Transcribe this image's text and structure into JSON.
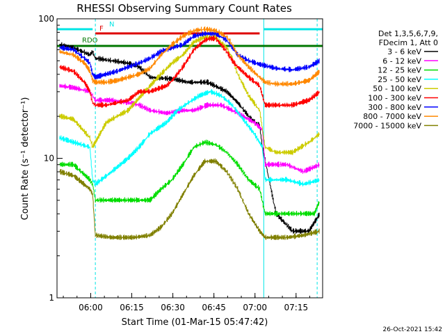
{
  "chart_data": {
    "type": "line",
    "title": "RHESSI Observing Summary Count Rates",
    "xlabel": "Start Time (01-Mar-15 05:47:42)",
    "ylabel": "Count Rate (s⁻¹ detector⁻¹)",
    "xaxis_unit": "minutes after 05:47:42",
    "xlim": [
      0,
      97
    ],
    "ylim": [
      1,
      100
    ],
    "yscale": "log",
    "x_ticks": [
      {
        "v": 12.3,
        "label": "06:00"
      },
      {
        "v": 27.3,
        "label": "06:15"
      },
      {
        "v": 42.3,
        "label": "06:30"
      },
      {
        "v": 57.3,
        "label": "06:45"
      },
      {
        "v": 72.3,
        "label": "07:00"
      },
      {
        "v": 87.3,
        "label": "07:15"
      }
    ],
    "y_ticks": [
      {
        "v": 1,
        "label": "1"
      },
      {
        "v": 10,
        "label": "10"
      },
      {
        "v": 100,
        "label": "100"
      }
    ],
    "legend": {
      "placement": "right",
      "header": [
        "Det 1,3,5,6,7,9,",
        "FDecim 1, Att 0"
      ]
    },
    "flags": [
      {
        "name": "N",
        "color": "#00e5e5",
        "segments": [
          [
            0,
            13
          ],
          [
            75.5,
            97
          ]
        ]
      },
      {
        "name": "F",
        "color": "#dd0000",
        "segments": [
          [
            14,
            74
          ]
        ]
      },
      {
        "name": "RDO",
        "color": "#007700",
        "segments": [
          [
            0,
            97
          ]
        ]
      }
    ],
    "series": [
      {
        "name": "3 - 6 keV",
        "color": "#000000",
        "points": [
          [
            1,
            65
          ],
          [
            6,
            62
          ],
          [
            12,
            55
          ],
          [
            13,
            58
          ],
          [
            14,
            52
          ],
          [
            20,
            50
          ],
          [
            26,
            48
          ],
          [
            30,
            45
          ],
          [
            34,
            38
          ],
          [
            42,
            37
          ],
          [
            48,
            35
          ],
          [
            55,
            35
          ],
          [
            62,
            30
          ],
          [
            66,
            25
          ],
          [
            70,
            20
          ],
          [
            74,
            17
          ],
          [
            75,
            12
          ],
          [
            80,
            4
          ],
          [
            86,
            3
          ],
          [
            92,
            3
          ],
          [
            96,
            4
          ]
        ]
      },
      {
        "name": "6 - 12 keV",
        "color": "#ff00ff",
        "points": [
          [
            1,
            33
          ],
          [
            6,
            32
          ],
          [
            12,
            30
          ],
          [
            13,
            28
          ],
          [
            14,
            26
          ],
          [
            20,
            26
          ],
          [
            26,
            25
          ],
          [
            30,
            24
          ],
          [
            34,
            22
          ],
          [
            40,
            21
          ],
          [
            46,
            22
          ],
          [
            50,
            22
          ],
          [
            55,
            24
          ],
          [
            60,
            24
          ],
          [
            64,
            22
          ],
          [
            68,
            20
          ],
          [
            72,
            18
          ],
          [
            75,
            16
          ],
          [
            76,
            9
          ],
          [
            84,
            9
          ],
          [
            90,
            8
          ],
          [
            96,
            9
          ]
        ]
      },
      {
        "name": "12 - 25 keV",
        "color": "#00dd00",
        "points": [
          [
            1,
            9
          ],
          [
            6,
            9
          ],
          [
            12,
            7
          ],
          [
            13,
            6.5
          ],
          [
            14,
            5
          ],
          [
            20,
            5
          ],
          [
            28,
            5
          ],
          [
            34,
            5
          ],
          [
            38,
            6
          ],
          [
            42,
            7
          ],
          [
            46,
            9
          ],
          [
            50,
            12
          ],
          [
            54,
            13
          ],
          [
            58,
            12.5
          ],
          [
            62,
            11
          ],
          [
            66,
            9
          ],
          [
            70,
            7
          ],
          [
            74,
            6
          ],
          [
            76,
            4
          ],
          [
            82,
            4
          ],
          [
            88,
            4
          ],
          [
            94,
            4
          ],
          [
            96,
            5
          ]
        ]
      },
      {
        "name": "25 - 50 keV",
        "color": "#00ffff",
        "points": [
          [
            1,
            14
          ],
          [
            6,
            13
          ],
          [
            12,
            12
          ],
          [
            13,
            7
          ],
          [
            14,
            6.5
          ],
          [
            20,
            8
          ],
          [
            26,
            10
          ],
          [
            30,
            12
          ],
          [
            34,
            15
          ],
          [
            40,
            18
          ],
          [
            44,
            22
          ],
          [
            48,
            25
          ],
          [
            52,
            28
          ],
          [
            56,
            30
          ],
          [
            60,
            28
          ],
          [
            64,
            24
          ],
          [
            68,
            19
          ],
          [
            72,
            15
          ],
          [
            75,
            12
          ],
          [
            76,
            7
          ],
          [
            84,
            7
          ],
          [
            90,
            6.5
          ],
          [
            96,
            7
          ]
        ]
      },
      {
        "name": "50 - 100 keV",
        "color": "#cccc00",
        "points": [
          [
            1,
            20
          ],
          [
            6,
            19
          ],
          [
            12,
            14
          ],
          [
            13,
            12
          ],
          [
            14,
            13
          ],
          [
            18,
            18
          ],
          [
            22,
            20
          ],
          [
            26,
            22
          ],
          [
            30,
            27
          ],
          [
            34,
            33
          ],
          [
            38,
            40
          ],
          [
            42,
            48
          ],
          [
            46,
            55
          ],
          [
            50,
            68
          ],
          [
            54,
            74
          ],
          [
            58,
            73
          ],
          [
            62,
            62
          ],
          [
            64,
            52
          ],
          [
            66,
            40
          ],
          [
            70,
            28
          ],
          [
            74,
            22
          ],
          [
            76,
            12
          ],
          [
            80,
            11
          ],
          [
            86,
            11
          ],
          [
            92,
            13
          ],
          [
            96,
            15
          ]
        ]
      },
      {
        "name": "100 - 300 keV",
        "color": "#ff0000",
        "points": [
          [
            1,
            45
          ],
          [
            6,
            42
          ],
          [
            10,
            35
          ],
          [
            12,
            30
          ],
          [
            13,
            25
          ],
          [
            14,
            24
          ],
          [
            18,
            24
          ],
          [
            22,
            25
          ],
          [
            26,
            26
          ],
          [
            30,
            30
          ],
          [
            34,
            30
          ],
          [
            38,
            32
          ],
          [
            40,
            33
          ],
          [
            42,
            36
          ],
          [
            46,
            45
          ],
          [
            50,
            60
          ],
          [
            54,
            70
          ],
          [
            56,
            72
          ],
          [
            58,
            72
          ],
          [
            62,
            58
          ],
          [
            64,
            50
          ],
          [
            66,
            45
          ],
          [
            70,
            38
          ],
          [
            74,
            33
          ],
          [
            76,
            24
          ],
          [
            80,
            24
          ],
          [
            86,
            24
          ],
          [
            92,
            26
          ],
          [
            96,
            30
          ]
        ]
      },
      {
        "name": "300 - 800 keV",
        "color": "#0000ff",
        "points": [
          [
            1,
            62
          ],
          [
            6,
            60
          ],
          [
            10,
            52
          ],
          [
            12,
            48
          ],
          [
            13,
            40
          ],
          [
            14,
            38
          ],
          [
            18,
            40
          ],
          [
            22,
            42
          ],
          [
            26,
            45
          ],
          [
            30,
            48
          ],
          [
            34,
            52
          ],
          [
            38,
            58
          ],
          [
            42,
            62
          ],
          [
            46,
            65
          ],
          [
            50,
            75
          ],
          [
            54,
            78
          ],
          [
            58,
            78
          ],
          [
            62,
            70
          ],
          [
            64,
            62
          ],
          [
            66,
            55
          ],
          [
            70,
            50
          ],
          [
            74,
            47
          ],
          [
            76,
            46
          ],
          [
            80,
            44
          ],
          [
            86,
            43
          ],
          [
            92,
            45
          ],
          [
            96,
            50
          ]
        ]
      },
      {
        "name": "800 - 7000 keV",
        "color": "#ff8800",
        "points": [
          [
            1,
            58
          ],
          [
            6,
            55
          ],
          [
            10,
            48
          ],
          [
            12,
            42
          ],
          [
            13,
            36
          ],
          [
            14,
            35
          ],
          [
            18,
            35
          ],
          [
            22,
            36
          ],
          [
            26,
            38
          ],
          [
            30,
            40
          ],
          [
            34,
            44
          ],
          [
            38,
            55
          ],
          [
            42,
            65
          ],
          [
            46,
            75
          ],
          [
            50,
            82
          ],
          [
            54,
            84
          ],
          [
            58,
            82
          ],
          [
            62,
            74
          ],
          [
            64,
            65
          ],
          [
            66,
            55
          ],
          [
            70,
            45
          ],
          [
            74,
            38
          ],
          [
            76,
            35
          ],
          [
            80,
            34
          ],
          [
            86,
            34
          ],
          [
            92,
            36
          ],
          [
            96,
            42
          ]
        ]
      },
      {
        "name": "7000 - 15000 keV",
        "color": "#808000",
        "points": [
          [
            1,
            8
          ],
          [
            6,
            7.5
          ],
          [
            12,
            6
          ],
          [
            13,
            5.5
          ],
          [
            14,
            2.8
          ],
          [
            20,
            2.7
          ],
          [
            28,
            2.7
          ],
          [
            34,
            2.8
          ],
          [
            38,
            3.2
          ],
          [
            42,
            4
          ],
          [
            46,
            5.5
          ],
          [
            50,
            7.5
          ],
          [
            54,
            9.5
          ],
          [
            58,
            9.5
          ],
          [
            62,
            8
          ],
          [
            66,
            6
          ],
          [
            70,
            4
          ],
          [
            74,
            3
          ],
          [
            76,
            2.7
          ],
          [
            84,
            2.7
          ],
          [
            90,
            2.8
          ],
          [
            96,
            3
          ]
        ]
      }
    ],
    "vertical_markers": [
      {
        "x": 14,
        "style": "dashed",
        "color": "#00e5e5"
      },
      {
        "x": 75.5,
        "style": "solid",
        "color": "#00e5e5"
      },
      {
        "x": 95,
        "style": "dashed",
        "color": "#00e5e5"
      }
    ]
  },
  "footer": {
    "timestamp": "26-Oct-2021 15:42"
  }
}
